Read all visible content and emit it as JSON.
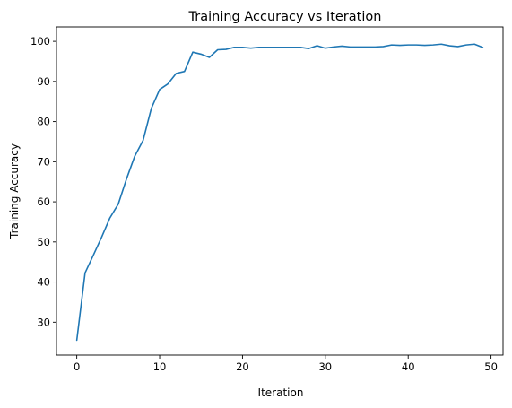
{
  "chart_data": {
    "type": "line",
    "title": "Training Accuracy vs Iteration",
    "xlabel": "Iteration",
    "ylabel": "Training Accuracy",
    "xlim": [
      -2.45,
      51.45
    ],
    "ylim": [
      21.8,
      103.6
    ],
    "xticks": [
      0,
      10,
      20,
      30,
      40,
      50
    ],
    "yticks": [
      30,
      40,
      50,
      60,
      70,
      80,
      90,
      100
    ],
    "grid": false,
    "series": [
      {
        "color": "#1f77b4",
        "x": [
          0,
          1,
          2,
          3,
          4,
          5,
          6,
          7,
          8,
          9,
          10,
          11,
          12,
          13,
          14,
          15,
          16,
          17,
          18,
          19,
          20,
          21,
          22,
          23,
          24,
          25,
          26,
          27,
          28,
          29,
          30,
          31,
          32,
          33,
          34,
          35,
          36,
          37,
          38,
          39,
          40,
          41,
          42,
          43,
          44,
          45,
          46,
          47,
          48,
          49
        ],
        "values": [
          25.5,
          42.3,
          46.7,
          51.2,
          56.0,
          59.4,
          65.7,
          71.4,
          75.3,
          83.3,
          88.0,
          89.4,
          92.0,
          92.5,
          97.3,
          96.8,
          96.0,
          97.9,
          98.0,
          98.5,
          98.5,
          98.3,
          98.5,
          98.5,
          98.5,
          98.5,
          98.5,
          98.5,
          98.2,
          98.9,
          98.3,
          98.6,
          98.8,
          98.6,
          98.6,
          98.6,
          98.6,
          98.7,
          99.1,
          99.0,
          99.1,
          99.1,
          99.0,
          99.1,
          99.3,
          98.9,
          98.7,
          99.1,
          99.3,
          98.5
        ]
      }
    ]
  }
}
